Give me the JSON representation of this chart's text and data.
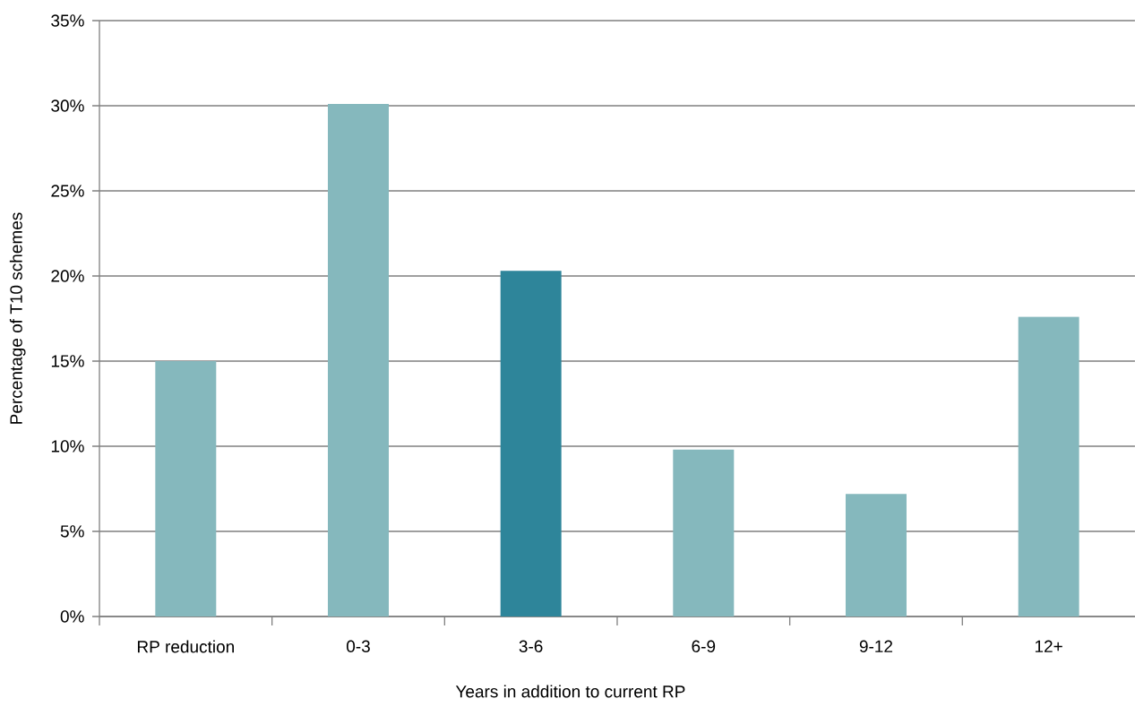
{
  "chart_data": {
    "type": "bar",
    "xlabel": "Years in addition to current RP",
    "ylabel": "Percentage of T10 schemes",
    "categories": [
      "RP reduction",
      "0-3",
      "3-6",
      "6-9",
      "9-12",
      "12+"
    ],
    "values": [
      15.0,
      30.1,
      20.3,
      9.8,
      7.2,
      17.6
    ],
    "colors": [
      "#85b8bd",
      "#85b8bd",
      "#2e859a",
      "#85b8bd",
      "#85b8bd",
      "#85b8bd"
    ],
    "ylim": [
      0,
      35
    ],
    "yticks": [
      {
        "value": 0,
        "label": "0%"
      },
      {
        "value": 5,
        "label": "5%"
      },
      {
        "value": 10,
        "label": "10%"
      },
      {
        "value": 15,
        "label": "15%"
      },
      {
        "value": 20,
        "label": "20%"
      },
      {
        "value": 25,
        "label": "25%"
      },
      {
        "value": 30,
        "label": "30%"
      },
      {
        "value": 35,
        "label": "35%"
      }
    ],
    "grid": "y"
  }
}
